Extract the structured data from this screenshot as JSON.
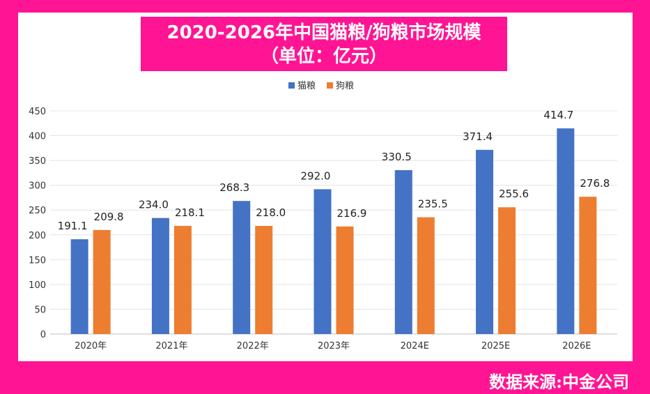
{
  "source_text": "数据来源:中金公司",
  "chart_data": {
    "type": "bar",
    "title_line1": "2020-2026年中国猫粮/狗粮市场规模",
    "title_line2": "（单位：亿元）",
    "categories": [
      "2020年",
      "2021年",
      "2022年",
      "2023年",
      "2024E",
      "2025E",
      "2026E"
    ],
    "series": [
      {
        "name": "猫粮",
        "color": "#4472c4",
        "values": [
          191.1,
          234.0,
          268.3,
          292.0,
          330.5,
          371.4,
          414.7
        ],
        "labels": [
          "191.1",
          "234.0",
          "268.3",
          "292.0",
          "330.5",
          "371.4",
          "414.7"
        ]
      },
      {
        "name": "狗粮",
        "color": "#ed7d31",
        "values": [
          209.8,
          218.1,
          218.0,
          216.9,
          235.5,
          255.6,
          276.8
        ],
        "labels": [
          "209.8",
          "218.1",
          "218.0",
          "216.9",
          "235.5",
          "255.6",
          "276.8"
        ]
      }
    ],
    "ylim": [
      0,
      450
    ],
    "yticks": [
      0,
      50,
      100,
      150,
      200,
      250,
      300,
      350,
      400,
      450
    ],
    "grid": true,
    "legend_position": "top-center"
  }
}
